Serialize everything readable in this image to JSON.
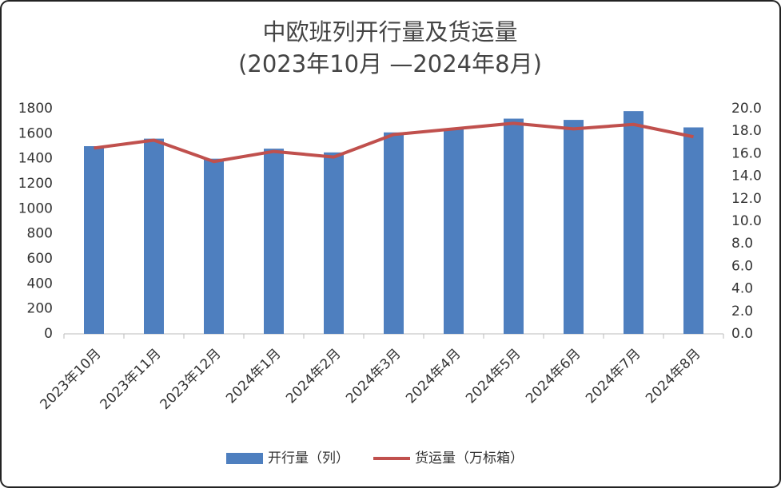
{
  "chart_data": {
    "type": "bar-line",
    "title": "中欧班列开行量及货运量",
    "subtitle": "(2023年10月 —2024年8月)",
    "categories": [
      "2023年10月",
      "2023年11月",
      "2023年12月",
      "2024年1月",
      "2024年2月",
      "2024年3月",
      "2024年4月",
      "2024年5月",
      "2024年6月",
      "2024年7月",
      "2024年8月"
    ],
    "series": [
      {
        "name": "开行量（列）",
        "type": "bar",
        "color": "#4e7fbf",
        "axis": "y",
        "values": [
          1500,
          1560,
          1400,
          1480,
          1450,
          1610,
          1640,
          1720,
          1710,
          1780,
          1650
        ]
      },
      {
        "name": "货运量（万标箱）",
        "type": "line",
        "color": "#c0504d",
        "axis": "y2",
        "values": [
          16.5,
          17.2,
          15.3,
          16.2,
          15.7,
          17.7,
          18.2,
          18.7,
          18.2,
          18.6,
          17.5
        ]
      }
    ],
    "ylim": [
      0,
      1800
    ],
    "yticks": [
      0,
      200,
      400,
      600,
      800,
      1000,
      1200,
      1400,
      1600,
      1800
    ],
    "y2lim": [
      0,
      20
    ],
    "y2ticks": [
      {
        "value": 0,
        "label": "0.0"
      },
      {
        "value": 2,
        "label": "2.0"
      },
      {
        "value": 4,
        "label": "4.0"
      },
      {
        "value": 6,
        "label": "6.0"
      },
      {
        "value": 8,
        "label": "8.0"
      },
      {
        "value": 10,
        "label": "10.0"
      },
      {
        "value": 12,
        "label": "12.0"
      },
      {
        "value": 14,
        "label": "14.0"
      },
      {
        "value": 16,
        "label": "16.0"
      },
      {
        "value": 18,
        "label": "18.0"
      },
      {
        "value": 20,
        "label": "20.0"
      }
    ],
    "legend": "bottom"
  }
}
